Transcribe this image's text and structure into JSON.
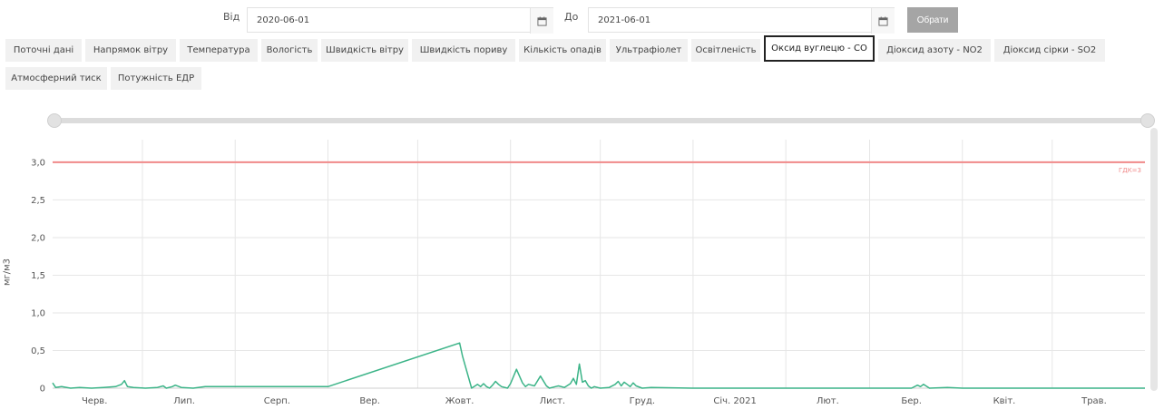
{
  "filters": {
    "from_label": "Від",
    "from_value": "2020-06-01",
    "to_label": "До",
    "to_value": "2021-06-01",
    "submit_label": "Обрати"
  },
  "tabs": [
    {
      "label": "Поточні дані",
      "active": false
    },
    {
      "label": "Напрямок вітру",
      "active": false
    },
    {
      "label": "Температура",
      "active": false
    },
    {
      "label": "Вологість",
      "active": false
    },
    {
      "label": "Швидкість вітру",
      "active": false
    },
    {
      "label": "Швидкість пориву",
      "active": false
    },
    {
      "label": "Кількість опадів",
      "active": false
    },
    {
      "label": "Ультрафіолет",
      "active": false
    },
    {
      "label": "Освітленість",
      "active": false
    },
    {
      "label": "Оксид вуглецю - CO",
      "active": true
    },
    {
      "label": "Діоксид азоту - NO2",
      "active": false
    },
    {
      "label": "Діоксид сірки - SO2",
      "active": false
    },
    {
      "label": "Атмосферний тиск",
      "active": false
    },
    {
      "label": "Потужність ЕДР",
      "active": false
    }
  ],
  "colors": {
    "series": "#3cb488",
    "threshold": "#f08a8a",
    "grid": "#e6e6e6",
    "active_tab_border": "#222222"
  },
  "chart_data": {
    "type": "line",
    "title": "",
    "xlabel": "",
    "ylabel": "мг/м3",
    "xlim": [
      "2020-06-01",
      "2021-06-01"
    ],
    "ylim": [
      0,
      3.3
    ],
    "yticks": [
      0,
      0.5,
      1.0,
      1.5,
      2.0,
      2.5,
      3.0
    ],
    "ytick_labels": [
      "0",
      "0,5",
      "1,0",
      "1,5",
      "2,0",
      "2,5",
      "3,0"
    ],
    "xticks": [
      "2020-06-15",
      "2020-07-15",
      "2020-08-15",
      "2020-09-15",
      "2020-10-15",
      "2020-11-15",
      "2020-12-15",
      "2021-01-15",
      "2021-02-15",
      "2021-03-15",
      "2021-04-15",
      "2021-05-15"
    ],
    "xtick_labels": [
      "Черв.",
      "Лип.",
      "Серп.",
      "Вер.",
      "Жовт.",
      "Лист.",
      "Груд.",
      "Січ. 2021",
      "Лют.",
      "Бер.",
      "Квіт.",
      "Трав."
    ],
    "grid": true,
    "threshold": {
      "value": 3.0,
      "label": "ГДК=3"
    },
    "series": [
      {
        "x": [
          "2020-06-01",
          "2020-06-02",
          "2020-06-04",
          "2020-06-07",
          "2020-06-10",
          "2020-06-14",
          "2020-06-18",
          "2020-06-22",
          "2020-06-24",
          "2020-06-25",
          "2020-06-26",
          "2020-06-28",
          "2020-07-02",
          "2020-07-06",
          "2020-07-08",
          "2020-07-09",
          "2020-07-11",
          "2020-07-12",
          "2020-07-14",
          "2020-07-18",
          "2020-07-22",
          "2020-07-25",
          "2020-08-01",
          "2020-08-15",
          "2020-09-01",
          "2020-09-01",
          "2020-10-15",
          "2020-10-16",
          "2020-10-19",
          "2020-10-21",
          "2020-10-22",
          "2020-10-23",
          "2020-10-24",
          "2020-10-25",
          "2020-10-26",
          "2020-10-27",
          "2020-10-28",
          "2020-10-29",
          "2020-10-31",
          "2020-11-01",
          "2020-11-03",
          "2020-11-05",
          "2020-11-06",
          "2020-11-07",
          "2020-11-09",
          "2020-11-11",
          "2020-11-13",
          "2020-11-14",
          "2020-11-16",
          "2020-11-17",
          "2020-11-19",
          "2020-11-21",
          "2020-11-22",
          "2020-11-23",
          "2020-11-24",
          "2020-11-25",
          "2020-11-26",
          "2020-11-27",
          "2020-11-28",
          "2020-11-29",
          "2020-12-01",
          "2020-12-04",
          "2020-12-06",
          "2020-12-07",
          "2020-12-08",
          "2020-12-09",
          "2020-12-10",
          "2020-12-11",
          "2020-12-12",
          "2020-12-13",
          "2020-12-15",
          "2020-12-18",
          "2021-01-01",
          "2021-03-01",
          "2021-03-15",
          "2021-03-17",
          "2021-03-18",
          "2021-03-19",
          "2021-03-21",
          "2021-03-27",
          "2021-04-01",
          "2021-05-01",
          "2021-06-01"
        ],
        "y": [
          0.07,
          0.01,
          0.02,
          0.0,
          0.01,
          0.0,
          0.01,
          0.02,
          0.05,
          0.1,
          0.02,
          0.01,
          0.0,
          0.01,
          0.03,
          0.0,
          0.02,
          0.04,
          0.01,
          0.0,
          0.02,
          0.02,
          0.02,
          0.02,
          0.02,
          0.02,
          0.6,
          0.42,
          0.0,
          0.05,
          0.02,
          0.06,
          0.02,
          0.0,
          0.04,
          0.09,
          0.05,
          0.02,
          0.0,
          0.06,
          0.25,
          0.07,
          0.02,
          0.05,
          0.03,
          0.16,
          0.03,
          0.0,
          0.02,
          0.03,
          0.01,
          0.06,
          0.13,
          0.05,
          0.32,
          0.08,
          0.1,
          0.03,
          0.0,
          0.02,
          0.0,
          0.01,
          0.05,
          0.09,
          0.03,
          0.08,
          0.05,
          0.02,
          0.07,
          0.03,
          0.0,
          0.01,
          0.0,
          0.0,
          0.0,
          0.04,
          0.02,
          0.05,
          0.0,
          0.01,
          0.0,
          0.0,
          0.0
        ]
      }
    ]
  }
}
